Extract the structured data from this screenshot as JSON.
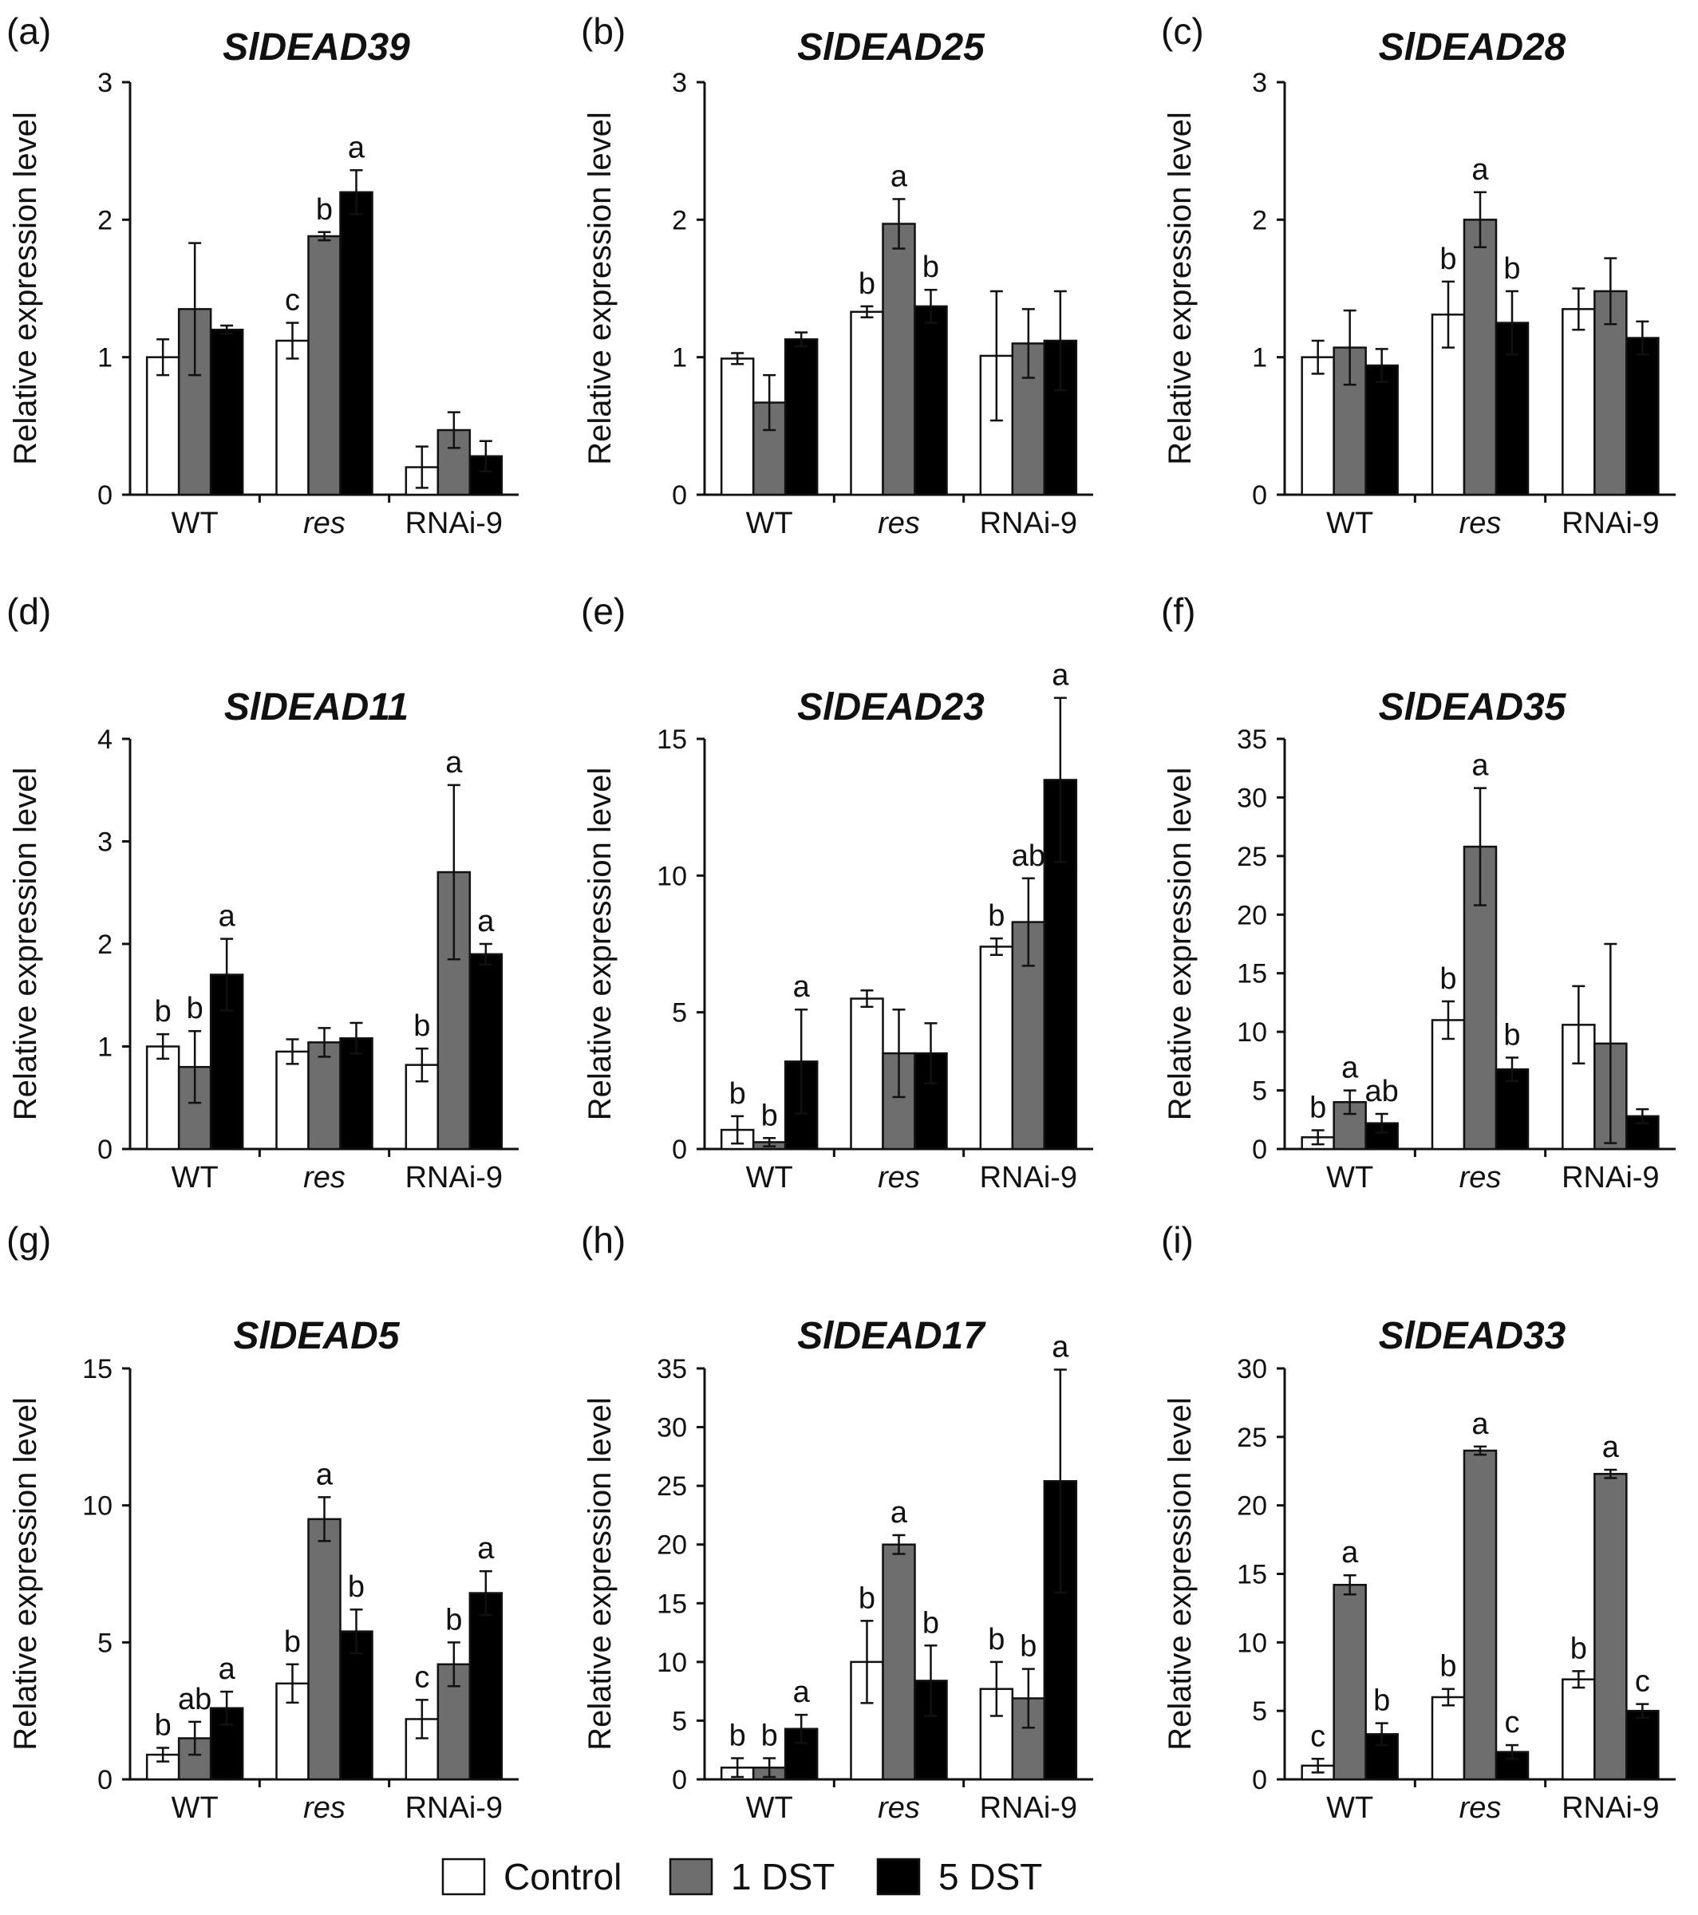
{
  "legend": {
    "items": [
      {
        "label": "Control",
        "color": "#ffffff"
      },
      {
        "label": "1 DST",
        "color": "#6e6e6e"
      },
      {
        "label": "5 DST",
        "color": "#000000"
      }
    ],
    "placement": "bottom-center"
  },
  "style": {
    "bar_colors": [
      "#ffffff",
      "#6e6e6e",
      "#000000"
    ],
    "axis_color": "#111111"
  },
  "chart_data": [
    {
      "panel": "(a)",
      "type": "bar",
      "title": "SlDEAD39",
      "ylabel": "Relative expression level",
      "xlabel": "",
      "categories": [
        "WT",
        "res",
        "RNAi-9"
      ],
      "italic_categories": [
        "res"
      ],
      "ylim": [
        0,
        3
      ],
      "yticks": [
        0,
        1,
        2,
        3
      ],
      "grid": false,
      "series": [
        {
          "name": "Control",
          "values": [
            1.0,
            1.12,
            0.2
          ],
          "errors": [
            0.13,
            0.13,
            0.15
          ]
        },
        {
          "name": "1 DST",
          "values": [
            1.35,
            1.88,
            0.47
          ],
          "errors": [
            0.48,
            0.03,
            0.13
          ]
        },
        {
          "name": "5 DST",
          "values": [
            1.2,
            2.2,
            0.28
          ],
          "errors": [
            0.03,
            0.16,
            0.11
          ]
        }
      ],
      "letters": [
        [
          "",
          "",
          ""
        ],
        [
          "c",
          "b",
          "a"
        ],
        [
          "",
          "",
          ""
        ]
      ]
    },
    {
      "panel": "(b)",
      "type": "bar",
      "title": "SlDEAD25",
      "ylabel": "Relative expression level",
      "xlabel": "",
      "categories": [
        "WT",
        "res",
        "RNAi-9"
      ],
      "italic_categories": [
        "res"
      ],
      "ylim": [
        0,
        3
      ],
      "yticks": [
        0,
        1,
        2,
        3
      ],
      "grid": false,
      "series": [
        {
          "name": "Control",
          "values": [
            0.99,
            1.33,
            1.01
          ],
          "errors": [
            0.04,
            0.04,
            0.47
          ]
        },
        {
          "name": "1 DST",
          "values": [
            0.67,
            1.97,
            1.1
          ],
          "errors": [
            0.2,
            0.18,
            0.25
          ]
        },
        {
          "name": "5 DST",
          "values": [
            1.13,
            1.37,
            1.12
          ],
          "errors": [
            0.05,
            0.12,
            0.36
          ]
        }
      ],
      "letters": [
        [
          "",
          "",
          ""
        ],
        [
          "b",
          "a",
          "b"
        ],
        [
          "",
          "",
          ""
        ]
      ]
    },
    {
      "panel": "(c)",
      "type": "bar",
      "title": "SlDEAD28",
      "ylabel": "Relative expression level",
      "xlabel": "",
      "categories": [
        "WT",
        "res",
        "RNAi-9"
      ],
      "italic_categories": [
        "res"
      ],
      "ylim": [
        0,
        3
      ],
      "yticks": [
        0,
        1,
        2,
        3
      ],
      "grid": false,
      "series": [
        {
          "name": "Control",
          "values": [
            1.0,
            1.31,
            1.35
          ],
          "errors": [
            0.12,
            0.24,
            0.15
          ]
        },
        {
          "name": "1 DST",
          "values": [
            1.07,
            2.0,
            1.48
          ],
          "errors": [
            0.27,
            0.2,
            0.24
          ]
        },
        {
          "name": "5 DST",
          "values": [
            0.94,
            1.25,
            1.14
          ],
          "errors": [
            0.12,
            0.23,
            0.12
          ]
        }
      ],
      "letters": [
        [
          "",
          "",
          ""
        ],
        [
          "b",
          "a",
          "b"
        ],
        [
          "",
          "",
          ""
        ]
      ]
    },
    {
      "panel": "(d)",
      "type": "bar",
      "title": "SlDEAD11",
      "ylabel": "Relative expression level",
      "xlabel": "",
      "categories": [
        "WT",
        "res",
        "RNAi-9"
      ],
      "italic_categories": [
        "res"
      ],
      "ylim": [
        0,
        4
      ],
      "yticks": [
        0,
        1,
        2,
        3,
        4
      ],
      "grid": false,
      "series": [
        {
          "name": "Control",
          "values": [
            1.0,
            0.95,
            0.82
          ],
          "errors": [
            0.12,
            0.12,
            0.16
          ]
        },
        {
          "name": "1 DST",
          "values": [
            0.8,
            1.04,
            2.7
          ],
          "errors": [
            0.35,
            0.14,
            0.85
          ]
        },
        {
          "name": "5 DST",
          "values": [
            1.7,
            1.08,
            1.9
          ],
          "errors": [
            0.35,
            0.15,
            0.1
          ]
        }
      ],
      "letters": [
        [
          "b",
          "b",
          "a"
        ],
        [
          "",
          "",
          ""
        ],
        [
          "b",
          "a",
          "a"
        ]
      ]
    },
    {
      "panel": "(e)",
      "type": "bar",
      "title": "SlDEAD23",
      "ylabel": "Relative expression level",
      "xlabel": "",
      "categories": [
        "WT",
        "res",
        "RNAi-9"
      ],
      "italic_categories": [
        "res"
      ],
      "ylim": [
        0,
        15
      ],
      "yticks": [
        0,
        5,
        10,
        15
      ],
      "grid": false,
      "series": [
        {
          "name": "Control",
          "values": [
            0.7,
            5.5,
            7.4
          ],
          "errors": [
            0.5,
            0.3,
            0.3
          ]
        },
        {
          "name": "1 DST",
          "values": [
            0.25,
            3.5,
            8.3
          ],
          "errors": [
            0.15,
            1.6,
            1.6
          ]
        },
        {
          "name": "5 DST",
          "values": [
            3.2,
            3.5,
            13.5
          ],
          "errors": [
            1.9,
            1.1,
            3.0
          ]
        }
      ],
      "letters": [
        [
          "b",
          "b",
          "a"
        ],
        [
          "",
          "",
          ""
        ],
        [
          "b",
          "ab",
          "a"
        ]
      ]
    },
    {
      "panel": "(f)",
      "type": "bar",
      "title": "SlDEAD35",
      "ylabel": "Relative expression level",
      "xlabel": "",
      "categories": [
        "WT",
        "res",
        "RNAi-9"
      ],
      "italic_categories": [
        "res"
      ],
      "ylim": [
        0,
        35
      ],
      "yticks": [
        0,
        5,
        10,
        15,
        20,
        25,
        30,
        35
      ],
      "grid": false,
      "series": [
        {
          "name": "Control",
          "values": [
            1.0,
            11.0,
            10.6
          ],
          "errors": [
            0.6,
            1.6,
            3.3
          ]
        },
        {
          "name": "1 DST",
          "values": [
            4.0,
            25.8,
            9.0
          ],
          "errors": [
            1.0,
            5.0,
            8.5
          ]
        },
        {
          "name": "5 DST",
          "values": [
            2.2,
            6.8,
            2.8
          ],
          "errors": [
            0.8,
            1.0,
            0.6
          ]
        }
      ],
      "letters": [
        [
          "b",
          "a",
          "ab"
        ],
        [
          "b",
          "a",
          "b"
        ],
        [
          "",
          "",
          ""
        ]
      ]
    },
    {
      "panel": "(g)",
      "type": "bar",
      "title": "SlDEAD5",
      "ylabel": "Relative expression level",
      "xlabel": "",
      "categories": [
        "WT",
        "res",
        "RNAi-9"
      ],
      "italic_categories": [
        "res"
      ],
      "ylim": [
        0,
        15
      ],
      "yticks": [
        0,
        5,
        10,
        15
      ],
      "grid": false,
      "series": [
        {
          "name": "Control",
          "values": [
            0.9,
            3.5,
            2.2
          ],
          "errors": [
            0.25,
            0.7,
            0.7
          ]
        },
        {
          "name": "1 DST",
          "values": [
            1.5,
            9.5,
            4.2
          ],
          "errors": [
            0.6,
            0.8,
            0.8
          ]
        },
        {
          "name": "5 DST",
          "values": [
            2.6,
            5.4,
            6.8
          ],
          "errors": [
            0.6,
            0.8,
            0.8
          ]
        }
      ],
      "letters": [
        [
          "b",
          "ab",
          "a"
        ],
        [
          "b",
          "a",
          "b"
        ],
        [
          "c",
          "b",
          "a"
        ]
      ]
    },
    {
      "panel": "(h)",
      "type": "bar",
      "title": "SlDEAD17",
      "ylabel": "Relative expression level",
      "xlabel": "",
      "categories": [
        "WT",
        "res",
        "RNAi-9"
      ],
      "italic_categories": [
        "res"
      ],
      "ylim": [
        0,
        35
      ],
      "yticks": [
        0,
        5,
        10,
        15,
        20,
        25,
        30,
        35
      ],
      "grid": false,
      "series": [
        {
          "name": "Control",
          "values": [
            1.0,
            10.0,
            7.7
          ],
          "errors": [
            0.8,
            3.5,
            2.3
          ]
        },
        {
          "name": "1 DST",
          "values": [
            1.0,
            20.0,
            6.9
          ],
          "errors": [
            0.8,
            0.8,
            2.5
          ]
        },
        {
          "name": "5 DST",
          "values": [
            4.3,
            8.4,
            25.4
          ],
          "errors": [
            1.2,
            3.0,
            9.5
          ]
        }
      ],
      "letters": [
        [
          "b",
          "b",
          "a"
        ],
        [
          "b",
          "a",
          "b"
        ],
        [
          "b",
          "b",
          "a"
        ]
      ]
    },
    {
      "panel": "(i)",
      "type": "bar",
      "title": "SlDEAD33",
      "ylabel": "Relative expression level",
      "xlabel": "",
      "categories": [
        "WT",
        "res",
        "RNAi-9"
      ],
      "italic_categories": [
        "res"
      ],
      "ylim": [
        0,
        30
      ],
      "yticks": [
        0,
        5,
        10,
        15,
        20,
        25,
        30
      ],
      "grid": false,
      "series": [
        {
          "name": "Control",
          "values": [
            1.0,
            6.0,
            7.3
          ],
          "errors": [
            0.5,
            0.6,
            0.6
          ]
        },
        {
          "name": "1 DST",
          "values": [
            14.2,
            24.0,
            22.3
          ],
          "errors": [
            0.7,
            0.3,
            0.3
          ]
        },
        {
          "name": "5 DST",
          "values": [
            3.3,
            2.0,
            5.0
          ],
          "errors": [
            0.8,
            0.5,
            0.5
          ]
        }
      ],
      "letters": [
        [
          "c",
          "a",
          "b"
        ],
        [
          "b",
          "a",
          "c"
        ],
        [
          "b",
          "a",
          "c"
        ]
      ]
    }
  ]
}
